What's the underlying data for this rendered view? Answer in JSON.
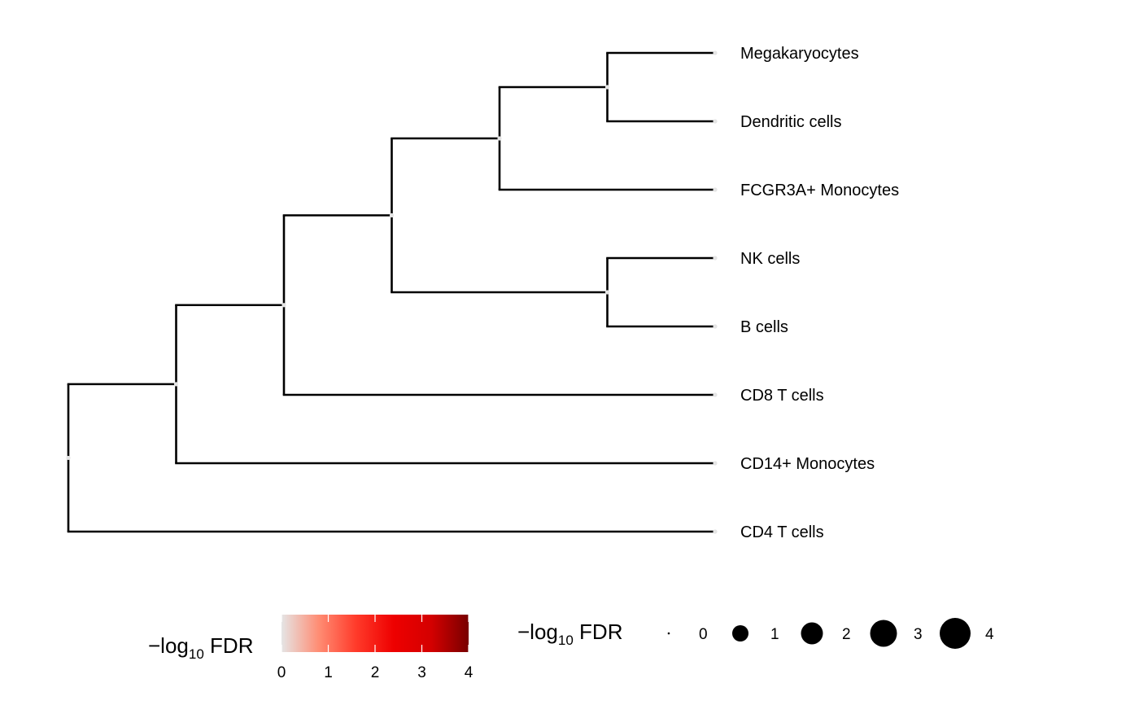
{
  "chart_data": {
    "type": "dendrogram",
    "tips": [
      "Megakaryocytes",
      "Dendritic cells",
      "FCGR3A+ Monocytes",
      "NK cells",
      "B cells",
      "CD8 T cells",
      "CD14+ Monocytes",
      "CD4 T cells"
    ],
    "nodes": [
      {
        "id": "n1",
        "children": [
          "Megakaryocytes",
          "Dendritic cells"
        ],
        "depth": 5,
        "fdr_neglog10": 0
      },
      {
        "id": "n2",
        "children": [
          "n1",
          "FCGR3A+ Monocytes"
        ],
        "depth": 4,
        "fdr_neglog10": 0
      },
      {
        "id": "n3",
        "children": [
          "NK cells",
          "B cells"
        ],
        "depth": 5,
        "fdr_neglog10": 0
      },
      {
        "id": "n4",
        "children": [
          "n2",
          "n3"
        ],
        "depth": 3,
        "fdr_neglog10": 0
      },
      {
        "id": "n5",
        "children": [
          "n4",
          "CD8 T cells"
        ],
        "depth": 2,
        "fdr_neglog10": 0
      },
      {
        "id": "n6",
        "children": [
          "n5",
          "CD14+ Monocytes"
        ],
        "depth": 1,
        "fdr_neglog10": 0
      },
      {
        "id": "root",
        "children": [
          "n6",
          "CD4 T cells"
        ],
        "depth": 0,
        "fdr_neglog10": 0
      }
    ],
    "max_depth": 6,
    "legend_color": {
      "title_prefix": "−log",
      "title_sub": "10",
      "title_suffix": " FDR",
      "ticks": [
        "0",
        "1",
        "2",
        "3",
        "4"
      ],
      "range": [
        0,
        4
      ],
      "colors": [
        "#e5e5e5",
        "#ff8c73",
        "#ff3a2a",
        "#ee0000",
        "#d40000",
        "#780000"
      ]
    },
    "legend_size": {
      "title_prefix": "−log",
      "title_sub": "10",
      "title_suffix": " FDR",
      "values": [
        "0",
        "1",
        "2",
        "3",
        "4"
      ]
    },
    "colors": {
      "edge": "#000000",
      "node_point": "#e5e5e5",
      "size_point": "#000000"
    }
  }
}
